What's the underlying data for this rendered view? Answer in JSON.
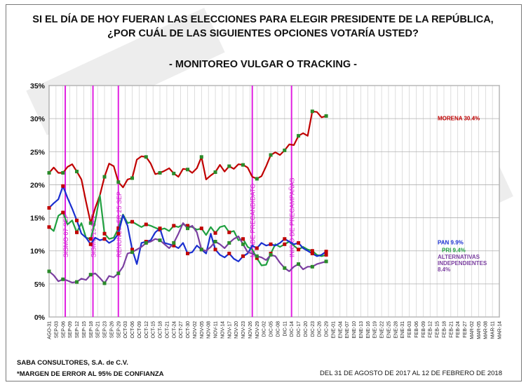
{
  "header": {
    "title_line1": "SI EL DÍA DE HOY FUERAN LAS ELECCIONES PARA ELEGIR  PRESIDENTE DE LA REPÚBLICA,",
    "title_line2": "¿POR CUÁL DE LAS SIGUIENTES OPCIONES VOTARÍA USTED?",
    "subtitle": "- MONITOREO VULGAR O TRACKING -"
  },
  "footer": {
    "company": "SABA CONSULTORES, S.A. de C.V.",
    "margin_note": "*MARGEN DE ERROR AL 95% DE CONFIANZA",
    "date_range": "DEL 31 DE AGOSTO DE 2017 AL 12 DE FEBRERO DE 2018"
  },
  "chart_data": {
    "type": "line",
    "ylim": [
      0,
      35
    ],
    "yticks": [
      0,
      5,
      10,
      15,
      20,
      25,
      30,
      35
    ],
    "ytick_labels": [
      "0%",
      "5%",
      "10%",
      "15%",
      "20%",
      "25%",
      "30%",
      "35%"
    ],
    "grid": true,
    "categories": [
      "AGO-31",
      "SEP-03",
      "SEP-06",
      "SEP-09",
      "SEP-12",
      "SEP-15",
      "SEP-18",
      "SEP-21",
      "SEP-23",
      "SEP-26",
      "SEP-29",
      "OCT-03",
      "OCT-06",
      "OCT-09",
      "OCT-12",
      "OCT-15",
      "OCT-18",
      "OCT-21",
      "OCT-24",
      "OCT-27",
      "OCT-30",
      "NOV-02",
      "NOV-05",
      "NOV-08",
      "NOV-11",
      "NOV-14",
      "NOV-17",
      "NOV-20",
      "NOV-23",
      "NOV-26",
      "NOV-29",
      "DIC-02",
      "DIC-05",
      "DIC-08",
      "DIC-11",
      "DIC-14",
      "DIC-17",
      "DIC-20",
      "DIC-23",
      "DIC-26",
      "DIC-29",
      "ENE-01",
      "ENE-04",
      "ENE-07",
      "ENE-10",
      "ENE-13",
      "ENE-16",
      "ENE-19",
      "ENE-22",
      "ENE-25",
      "ENE-28",
      "ENE-31",
      "FEB-03",
      "FEB-06",
      "FEB-09",
      "FEB-12",
      "FEB-15",
      "FEB-18",
      "FEB-21",
      "FEB-24",
      "FEB-27",
      "MAR-02",
      "MAR-05",
      "MAR-08",
      "MAR-11",
      "MAR-14"
    ],
    "x_start": "2017-08-31",
    "x_end": "2018-03-14",
    "events": [
      {
        "date": "2017-09-07",
        "label": "SISMO 07 SEP"
      },
      {
        "date": "2017-09-19",
        "label": "SISMO 19 SEP"
      },
      {
        "date": "2017-09-30",
        "label": "RENUNCIA FR 25 SEP"
      },
      {
        "date": "2017-11-27",
        "label": "MEADE PRECANDIDATO"
      },
      {
        "date": "2017-12-14",
        "label": "INICIO DE PRECAMPAÑAS"
      }
    ],
    "series": [
      {
        "name": "MORENA",
        "label": "MORENA 30.4%",
        "color": "#c00000",
        "points": [
          [
            "2017-08-31",
            21.8
          ],
          [
            "2017-09-02",
            22.6
          ],
          [
            "2017-09-04",
            21.8
          ],
          [
            "2017-09-06",
            21.8
          ],
          [
            "2017-09-08",
            22.7
          ],
          [
            "2017-09-10",
            23.1
          ],
          [
            "2017-09-12",
            22.0
          ],
          [
            "2017-09-14",
            20.8
          ],
          [
            "2017-09-16",
            17.4
          ],
          [
            "2017-09-18",
            14.2
          ],
          [
            "2017-09-20",
            16.5
          ],
          [
            "2017-09-22",
            18.4
          ],
          [
            "2017-09-24",
            21.2
          ],
          [
            "2017-09-26",
            23.2
          ],
          [
            "2017-09-28",
            22.8
          ],
          [
            "2017-09-30",
            20.4
          ],
          [
            "2017-10-02",
            19.6
          ],
          [
            "2017-10-04",
            20.8
          ],
          [
            "2017-10-06",
            21.0
          ],
          [
            "2017-10-08",
            23.8
          ],
          [
            "2017-10-10",
            24.3
          ],
          [
            "2017-10-12",
            24.2
          ],
          [
            "2017-10-14",
            23.2
          ],
          [
            "2017-10-16",
            21.6
          ],
          [
            "2017-10-18",
            21.8
          ],
          [
            "2017-10-20",
            22.1
          ],
          [
            "2017-10-22",
            22.5
          ],
          [
            "2017-10-24",
            21.7
          ],
          [
            "2017-10-26",
            21.2
          ],
          [
            "2017-10-28",
            22.4
          ],
          [
            "2017-10-30",
            22.3
          ],
          [
            "2017-11-01",
            21.8
          ],
          [
            "2017-11-03",
            22.5
          ],
          [
            "2017-11-05",
            24.2
          ],
          [
            "2017-11-07",
            20.8
          ],
          [
            "2017-11-09",
            21.4
          ],
          [
            "2017-11-11",
            21.9
          ],
          [
            "2017-11-13",
            23.0
          ],
          [
            "2017-11-15",
            22.0
          ],
          [
            "2017-11-17",
            22.8
          ],
          [
            "2017-11-19",
            22.4
          ],
          [
            "2017-11-21",
            23.1
          ],
          [
            "2017-11-23",
            23.0
          ],
          [
            "2017-11-25",
            22.6
          ],
          [
            "2017-11-27",
            21.2
          ],
          [
            "2017-11-29",
            20.9
          ],
          [
            "2017-12-01",
            21.3
          ],
          [
            "2017-12-03",
            22.8
          ],
          [
            "2017-12-05",
            24.5
          ],
          [
            "2017-12-07",
            24.9
          ],
          [
            "2017-12-09",
            24.5
          ],
          [
            "2017-12-11",
            25.2
          ],
          [
            "2017-12-13",
            26.1
          ],
          [
            "2017-12-15",
            26.0
          ],
          [
            "2017-12-17",
            27.4
          ],
          [
            "2017-12-19",
            27.8
          ],
          [
            "2017-12-21",
            27.4
          ],
          [
            "2017-12-23",
            31.1
          ],
          [
            "2017-12-25",
            31.0
          ],
          [
            "2017-12-27",
            30.2
          ],
          [
            "2017-12-29",
            30.4
          ]
        ]
      },
      {
        "name": "PRI",
        "label": "PRI 9.4%",
        "color": "#20a040",
        "points": [
          [
            "2017-08-31",
            13.6
          ],
          [
            "2017-09-02",
            13.0
          ],
          [
            "2017-09-04",
            15.3
          ],
          [
            "2017-09-06",
            15.8
          ],
          [
            "2017-09-08",
            14.0
          ],
          [
            "2017-09-10",
            14.6
          ],
          [
            "2017-09-12",
            12.8
          ],
          [
            "2017-09-14",
            14.2
          ],
          [
            "2017-09-16",
            12.0
          ],
          [
            "2017-09-18",
            11.8
          ],
          [
            "2017-09-20",
            14.5
          ],
          [
            "2017-09-22",
            18.4
          ],
          [
            "2017-09-24",
            12.6
          ],
          [
            "2017-09-26",
            11.8
          ],
          [
            "2017-09-28",
            12.0
          ],
          [
            "2017-09-30",
            13.4
          ],
          [
            "2017-10-02",
            15.5
          ],
          [
            "2017-10-04",
            14.2
          ],
          [
            "2017-10-06",
            14.4
          ],
          [
            "2017-10-08",
            14.0
          ],
          [
            "2017-10-10",
            13.6
          ],
          [
            "2017-10-12",
            14.0
          ],
          [
            "2017-10-14",
            13.8
          ],
          [
            "2017-10-16",
            13.5
          ],
          [
            "2017-10-18",
            13.2
          ],
          [
            "2017-10-20",
            13.4
          ],
          [
            "2017-10-22",
            13.0
          ],
          [
            "2017-10-24",
            13.8
          ],
          [
            "2017-10-26",
            13.6
          ],
          [
            "2017-10-28",
            14.0
          ],
          [
            "2017-10-30",
            13.8
          ],
          [
            "2017-11-01",
            13.6
          ],
          [
            "2017-11-03",
            13.2
          ],
          [
            "2017-11-05",
            13.4
          ],
          [
            "2017-11-07",
            12.4
          ],
          [
            "2017-11-09",
            13.6
          ],
          [
            "2017-11-11",
            12.7
          ],
          [
            "2017-11-13",
            13.6
          ],
          [
            "2017-11-15",
            13.8
          ],
          [
            "2017-11-17",
            12.8
          ],
          [
            "2017-11-19",
            13.0
          ],
          [
            "2017-11-21",
            11.6
          ],
          [
            "2017-11-23",
            11.8
          ],
          [
            "2017-11-25",
            10.6
          ],
          [
            "2017-11-27",
            10.2
          ],
          [
            "2017-11-29",
            8.9
          ],
          [
            "2017-12-01",
            7.8
          ],
          [
            "2017-12-03",
            7.9
          ],
          [
            "2017-12-05",
            9.6
          ],
          [
            "2017-12-07",
            11.0
          ],
          [
            "2017-12-09",
            10.6
          ],
          [
            "2017-12-11",
            11.0
          ],
          [
            "2017-12-13",
            11.4
          ],
          [
            "2017-12-15",
            10.8
          ],
          [
            "2017-12-17",
            10.2
          ],
          [
            "2017-12-19",
            10.6
          ],
          [
            "2017-12-21",
            10.2
          ],
          [
            "2017-12-23",
            10.0
          ],
          [
            "2017-12-25",
            9.4
          ],
          [
            "2017-12-27",
            9.2
          ],
          [
            "2017-12-29",
            9.4
          ]
        ]
      },
      {
        "name": "PAN",
        "label": "PAN 9.9%",
        "color": "#1a2fd0",
        "points": [
          [
            "2017-08-31",
            16.5
          ],
          [
            "2017-09-02",
            17.2
          ],
          [
            "2017-09-04",
            17.8
          ],
          [
            "2017-09-06",
            19.8
          ],
          [
            "2017-09-08",
            18.0
          ],
          [
            "2017-09-10",
            16.4
          ],
          [
            "2017-09-12",
            14.6
          ],
          [
            "2017-09-14",
            12.6
          ],
          [
            "2017-09-16",
            12.0
          ],
          [
            "2017-09-18",
            11.0
          ],
          [
            "2017-09-20",
            12.0
          ],
          [
            "2017-09-22",
            11.6
          ],
          [
            "2017-09-24",
            11.8
          ],
          [
            "2017-09-26",
            11.2
          ],
          [
            "2017-09-28",
            11.6
          ],
          [
            "2017-09-30",
            12.6
          ],
          [
            "2017-10-02",
            15.4
          ],
          [
            "2017-10-04",
            13.8
          ],
          [
            "2017-10-06",
            10.2
          ],
          [
            "2017-10-08",
            8.0
          ],
          [
            "2017-10-10",
            11.2
          ],
          [
            "2017-10-12",
            11.4
          ],
          [
            "2017-10-14",
            11.6
          ],
          [
            "2017-10-16",
            12.8
          ],
          [
            "2017-10-18",
            13.4
          ],
          [
            "2017-10-20",
            11.2
          ],
          [
            "2017-10-22",
            11.0
          ],
          [
            "2017-10-24",
            10.8
          ],
          [
            "2017-10-26",
            10.4
          ],
          [
            "2017-10-28",
            11.2
          ],
          [
            "2017-10-30",
            9.6
          ],
          [
            "2017-11-01",
            9.8
          ],
          [
            "2017-11-03",
            10.8
          ],
          [
            "2017-11-05",
            10.2
          ],
          [
            "2017-11-07",
            9.6
          ],
          [
            "2017-11-09",
            12.6
          ],
          [
            "2017-11-11",
            10.2
          ],
          [
            "2017-11-13",
            9.4
          ],
          [
            "2017-11-15",
            9.0
          ],
          [
            "2017-11-17",
            9.6
          ],
          [
            "2017-11-19",
            8.8
          ],
          [
            "2017-11-21",
            8.4
          ],
          [
            "2017-11-23",
            9.2
          ],
          [
            "2017-11-25",
            9.6
          ],
          [
            "2017-11-27",
            10.8
          ],
          [
            "2017-11-29",
            10.4
          ],
          [
            "2017-12-01",
            11.2
          ],
          [
            "2017-12-03",
            10.8
          ],
          [
            "2017-12-05",
            11.0
          ],
          [
            "2017-12-07",
            10.8
          ],
          [
            "2017-12-09",
            11.2
          ],
          [
            "2017-12-11",
            11.8
          ],
          [
            "2017-12-13",
            11.4
          ],
          [
            "2017-12-15",
            11.0
          ],
          [
            "2017-12-17",
            11.2
          ],
          [
            "2017-12-19",
            10.4
          ],
          [
            "2017-12-21",
            10.0
          ],
          [
            "2017-12-23",
            9.6
          ],
          [
            "2017-12-25",
            9.2
          ],
          [
            "2017-12-27",
            9.4
          ],
          [
            "2017-12-29",
            9.9
          ]
        ]
      },
      {
        "name": "ALTERNATIVAS INDEPENDIENTES",
        "label": "ALTERNATIVAS INDEPENDIENTES 8.4%",
        "color": "#7b3fa0",
        "points": [
          [
            "2017-08-31",
            6.9
          ],
          [
            "2017-09-02",
            6.3
          ],
          [
            "2017-09-04",
            5.4
          ],
          [
            "2017-09-06",
            5.7
          ],
          [
            "2017-09-08",
            5.5
          ],
          [
            "2017-09-10",
            5.2
          ],
          [
            "2017-09-12",
            5.3
          ],
          [
            "2017-09-14",
            5.8
          ],
          [
            "2017-09-16",
            5.6
          ],
          [
            "2017-09-18",
            6.4
          ],
          [
            "2017-09-20",
            6.6
          ],
          [
            "2017-09-22",
            5.9
          ],
          [
            "2017-09-24",
            5.1
          ],
          [
            "2017-09-26",
            6.2
          ],
          [
            "2017-09-28",
            6.0
          ],
          [
            "2017-09-30",
            6.6
          ],
          [
            "2017-10-02",
            7.6
          ],
          [
            "2017-10-04",
            9.6
          ],
          [
            "2017-10-06",
            9.8
          ],
          [
            "2017-10-08",
            10.2
          ],
          [
            "2017-10-10",
            10.6
          ],
          [
            "2017-10-12",
            11.2
          ],
          [
            "2017-10-14",
            11.4
          ],
          [
            "2017-10-16",
            11.8
          ],
          [
            "2017-10-18",
            11.6
          ],
          [
            "2017-10-20",
            11.0
          ],
          [
            "2017-10-22",
            10.4
          ],
          [
            "2017-10-24",
            11.2
          ],
          [
            "2017-10-26",
            12.6
          ],
          [
            "2017-10-28",
            14.2
          ],
          [
            "2017-10-30",
            13.4
          ],
          [
            "2017-11-01",
            13.8
          ],
          [
            "2017-11-03",
            12.8
          ],
          [
            "2017-11-05",
            10.2
          ],
          [
            "2017-11-07",
            10.0
          ],
          [
            "2017-11-09",
            10.6
          ],
          [
            "2017-11-11",
            11.4
          ],
          [
            "2017-11-13",
            11.0
          ],
          [
            "2017-11-15",
            10.4
          ],
          [
            "2017-11-17",
            11.2
          ],
          [
            "2017-11-19",
            11.8
          ],
          [
            "2017-11-21",
            12.2
          ],
          [
            "2017-11-23",
            11.0
          ],
          [
            "2017-11-25",
            9.8
          ],
          [
            "2017-11-27",
            9.6
          ],
          [
            "2017-11-29",
            9.2
          ],
          [
            "2017-12-01",
            9.0
          ],
          [
            "2017-12-03",
            8.6
          ],
          [
            "2017-12-05",
            9.4
          ],
          [
            "2017-12-07",
            9.2
          ],
          [
            "2017-12-09",
            8.2
          ],
          [
            "2017-12-11",
            7.4
          ],
          [
            "2017-12-13",
            6.9
          ],
          [
            "2017-12-15",
            7.6
          ],
          [
            "2017-12-17",
            8.0
          ],
          [
            "2017-12-19",
            7.2
          ],
          [
            "2017-12-21",
            7.6
          ],
          [
            "2017-12-23",
            7.6
          ],
          [
            "2017-12-25",
            8.0
          ],
          [
            "2017-12-27",
            8.2
          ],
          [
            "2017-12-29",
            8.4
          ]
        ]
      }
    ]
  }
}
